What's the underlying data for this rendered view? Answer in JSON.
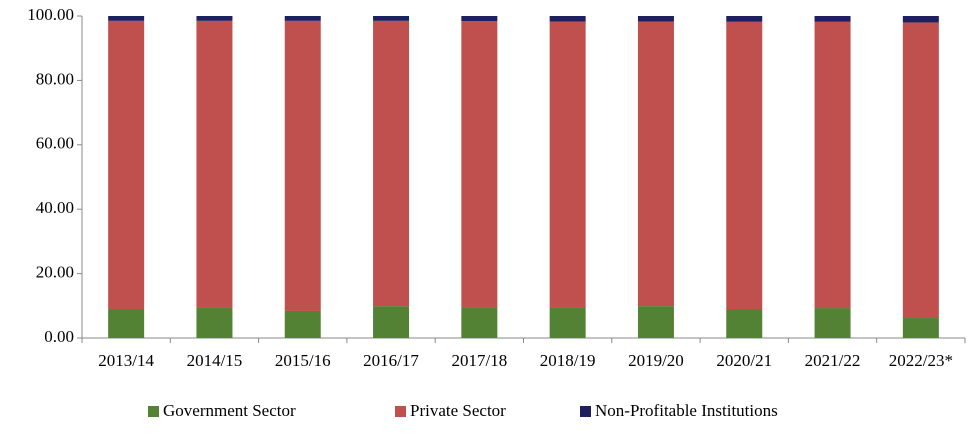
{
  "chart_data": {
    "type": "stacked_bar",
    "categories": [
      "2013/14",
      "2014/15",
      "2015/16",
      "2016/17",
      "2017/18",
      "2018/19",
      "2019/20",
      "2020/21",
      "2021/22",
      "2022/23*"
    ],
    "series": [
      {
        "name": "Government Sector",
        "color": "#548235",
        "values": [
          9.0,
          9.6,
          8.4,
          9.9,
          9.6,
          9.6,
          9.9,
          9.0,
          9.3,
          6.2
        ]
      },
      {
        "name": "Private Sector",
        "color": "#c0504d",
        "values": [
          89.5,
          88.9,
          90.1,
          88.6,
          88.8,
          88.7,
          88.4,
          89.2,
          88.9,
          91.8
        ]
      },
      {
        "name": "Non-Profitable Institutions",
        "color": "#1f2060",
        "values": [
          1.5,
          1.5,
          1.5,
          1.5,
          1.6,
          1.7,
          1.7,
          1.8,
          1.8,
          2.0
        ]
      }
    ],
    "ylim": [
      0,
      100
    ],
    "yticks": [
      {
        "value": 0,
        "label": "0.00"
      },
      {
        "value": 20,
        "label": "20.00"
      },
      {
        "value": 40,
        "label": "40.00"
      },
      {
        "value": 60,
        "label": "60.00"
      },
      {
        "value": 80,
        "label": "80.00"
      },
      {
        "value": 100,
        "label": "100.00"
      }
    ],
    "legend": "bottom"
  }
}
